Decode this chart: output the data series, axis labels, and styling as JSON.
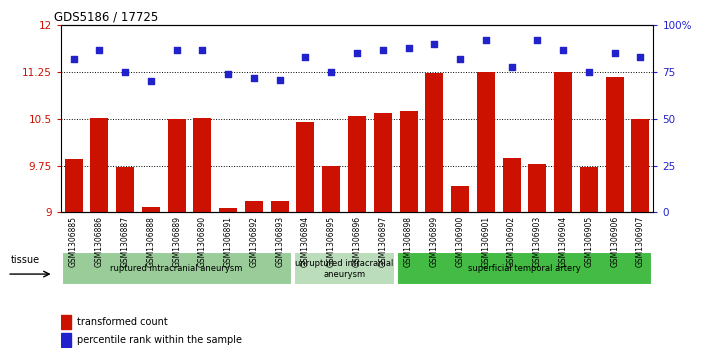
{
  "title": "GDS5186 / 17725",
  "samples": [
    "GSM1306885",
    "GSM1306886",
    "GSM1306887",
    "GSM1306888",
    "GSM1306889",
    "GSM1306890",
    "GSM1306891",
    "GSM1306892",
    "GSM1306893",
    "GSM1306894",
    "GSM1306895",
    "GSM1306896",
    "GSM1306897",
    "GSM1306898",
    "GSM1306899",
    "GSM1306900",
    "GSM1306901",
    "GSM1306902",
    "GSM1306903",
    "GSM1306904",
    "GSM1306905",
    "GSM1306906",
    "GSM1306907"
  ],
  "bar_values": [
    9.85,
    10.52,
    9.72,
    9.08,
    10.5,
    10.52,
    9.07,
    9.18,
    9.18,
    10.45,
    9.75,
    10.55,
    10.6,
    10.62,
    11.23,
    9.42,
    11.25,
    9.88,
    9.77,
    11.25,
    9.72,
    11.18,
    10.5
  ],
  "dot_values_pct": [
    82,
    87,
    75,
    70,
    87,
    87,
    74,
    72,
    71,
    83,
    75,
    85,
    87,
    88,
    90,
    82,
    92,
    78,
    92,
    87,
    75,
    85,
    83
  ],
  "bar_color": "#cc1100",
  "dot_color": "#2222cc",
  "ylim_left": [
    9.0,
    12.0
  ],
  "ylim_right": [
    0,
    100
  ],
  "yticks_left": [
    9.0,
    9.75,
    10.5,
    11.25,
    12.0
  ],
  "yticks_right": [
    0,
    25,
    50,
    75,
    100
  ],
  "ytick_labels_left": [
    "9",
    "9.75",
    "10.5",
    "11.25",
    "12"
  ],
  "ytick_labels_right": [
    "0",
    "25",
    "50",
    "75",
    "100%"
  ],
  "hlines": [
    9.75,
    10.5,
    11.25
  ],
  "groups": [
    {
      "label": "ruptured intracranial aneurysm",
      "start": 0,
      "end": 9,
      "color": "#99cc99"
    },
    {
      "label": "unruptured intracranial\naneurysm",
      "start": 9,
      "end": 13,
      "color": "#bbddbb"
    },
    {
      "label": "superficial temporal artery",
      "start": 13,
      "end": 23,
      "color": "#44bb44"
    }
  ],
  "tissue_label": "tissue",
  "legend_bar_label": "transformed count",
  "legend_dot_label": "percentile rank within the sample",
  "bg_color": "#ffffff",
  "fig_bg": "#ffffff"
}
